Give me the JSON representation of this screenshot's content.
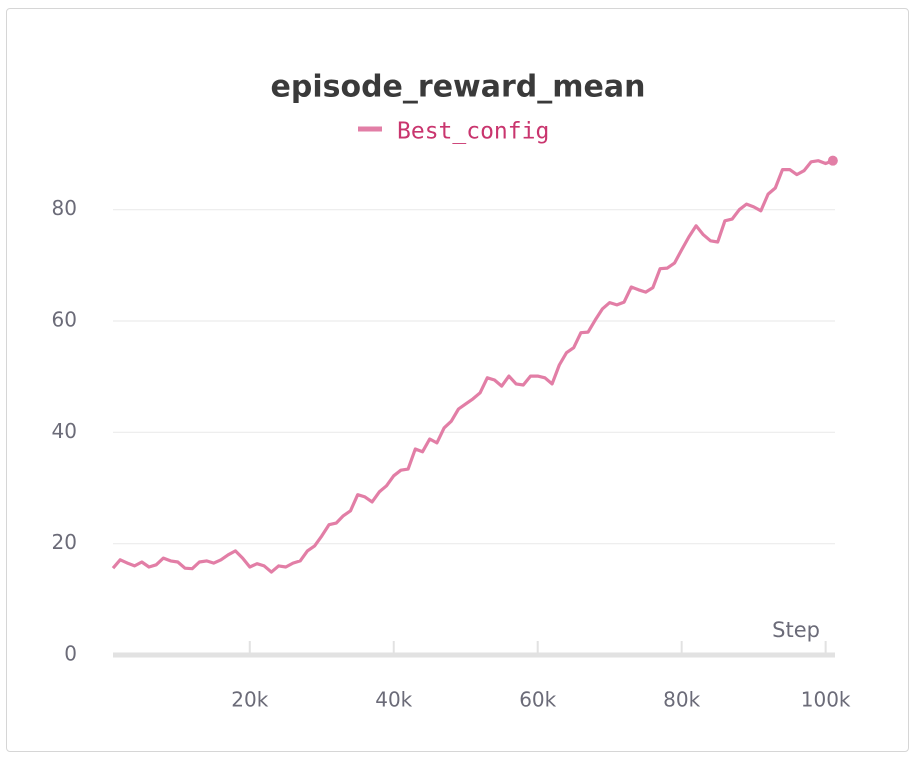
{
  "chart_data": {
    "type": "line",
    "title": "episode_reward_mean",
    "xlabel": "Step",
    "x": [
      1000,
      2000,
      3000,
      4000,
      5000,
      6000,
      7000,
      8000,
      9000,
      10000,
      11000,
      12000,
      13000,
      14000,
      15000,
      16000,
      17000,
      18000,
      19000,
      20000,
      21000,
      22000,
      23000,
      24000,
      25000,
      26000,
      27000,
      28000,
      29000,
      30000,
      31000,
      32000,
      33000,
      34000,
      35000,
      36000,
      37000,
      38000,
      39000,
      40000,
      41000,
      42000,
      43000,
      44000,
      45000,
      46000,
      47000,
      48000,
      49000,
      50000,
      51000,
      52000,
      53000,
      54000,
      55000,
      56000,
      57000,
      58000,
      59000,
      60000,
      61000,
      62000,
      63000,
      64000,
      65000,
      66000,
      67000,
      68000,
      69000,
      70000,
      71000,
      72000,
      73000,
      74000,
      75000,
      76000,
      77000,
      78000,
      79000,
      80000,
      81000,
      82000,
      83000,
      84000,
      85000,
      86000,
      87000,
      88000,
      89000,
      90000,
      91000,
      92000,
      93000,
      94000,
      95000,
      96000,
      97000,
      98000,
      99000,
      100000,
      101000
    ],
    "series": [
      {
        "name": "Best_config",
        "color": "#e27ea6",
        "values": [
          15.6,
          17.1,
          16.5,
          16,
          16.7,
          15.8,
          16.2,
          17.4,
          16.9,
          16.7,
          15.6,
          15.5,
          16.7,
          16.9,
          16.5,
          17.1,
          18,
          18.7,
          17.4,
          15.8,
          16.4,
          16,
          14.9,
          16,
          15.8,
          16.5,
          16.9,
          18.7,
          19.6,
          21.4,
          23.4,
          23.7,
          25,
          25.9,
          28.8,
          28.4,
          27.5,
          29.3,
          30.4,
          32.2,
          33.2,
          33.4,
          37,
          36.5,
          38.8,
          38.1,
          40.8,
          42,
          44.2,
          45.1,
          46,
          47.1,
          49.8,
          49.4,
          48.3,
          50.1,
          48.7,
          48.5,
          50.1,
          50.1,
          49.8,
          48.7,
          52.1,
          54.3,
          55.2,
          57.9,
          58,
          60.2,
          62.2,
          63.3,
          62.9,
          63.4,
          66.1,
          65.6,
          65.2,
          66,
          69.4,
          69.5,
          70.4,
          72.8,
          75.1,
          77.1,
          75.5,
          74.4,
          74.2,
          78,
          78.3,
          80,
          81,
          80.5,
          79.8,
          82.8,
          83.9,
          87.2,
          87.2,
          86.3,
          87,
          88.6,
          88.8,
          88.3,
          88.8
        ]
      }
    ],
    "xlim": [
      1000,
      101300
    ],
    "ylim": [
      0,
      90
    ],
    "xticks": [
      {
        "value": 20000,
        "label": "20k"
      },
      {
        "value": 40000,
        "label": "40k"
      },
      {
        "value": 60000,
        "label": "60k"
      },
      {
        "value": 80000,
        "label": "80k"
      },
      {
        "value": 100000,
        "label": "100k"
      }
    ],
    "yticks": [
      0,
      20,
      40,
      60,
      80
    ],
    "grid": true
  }
}
